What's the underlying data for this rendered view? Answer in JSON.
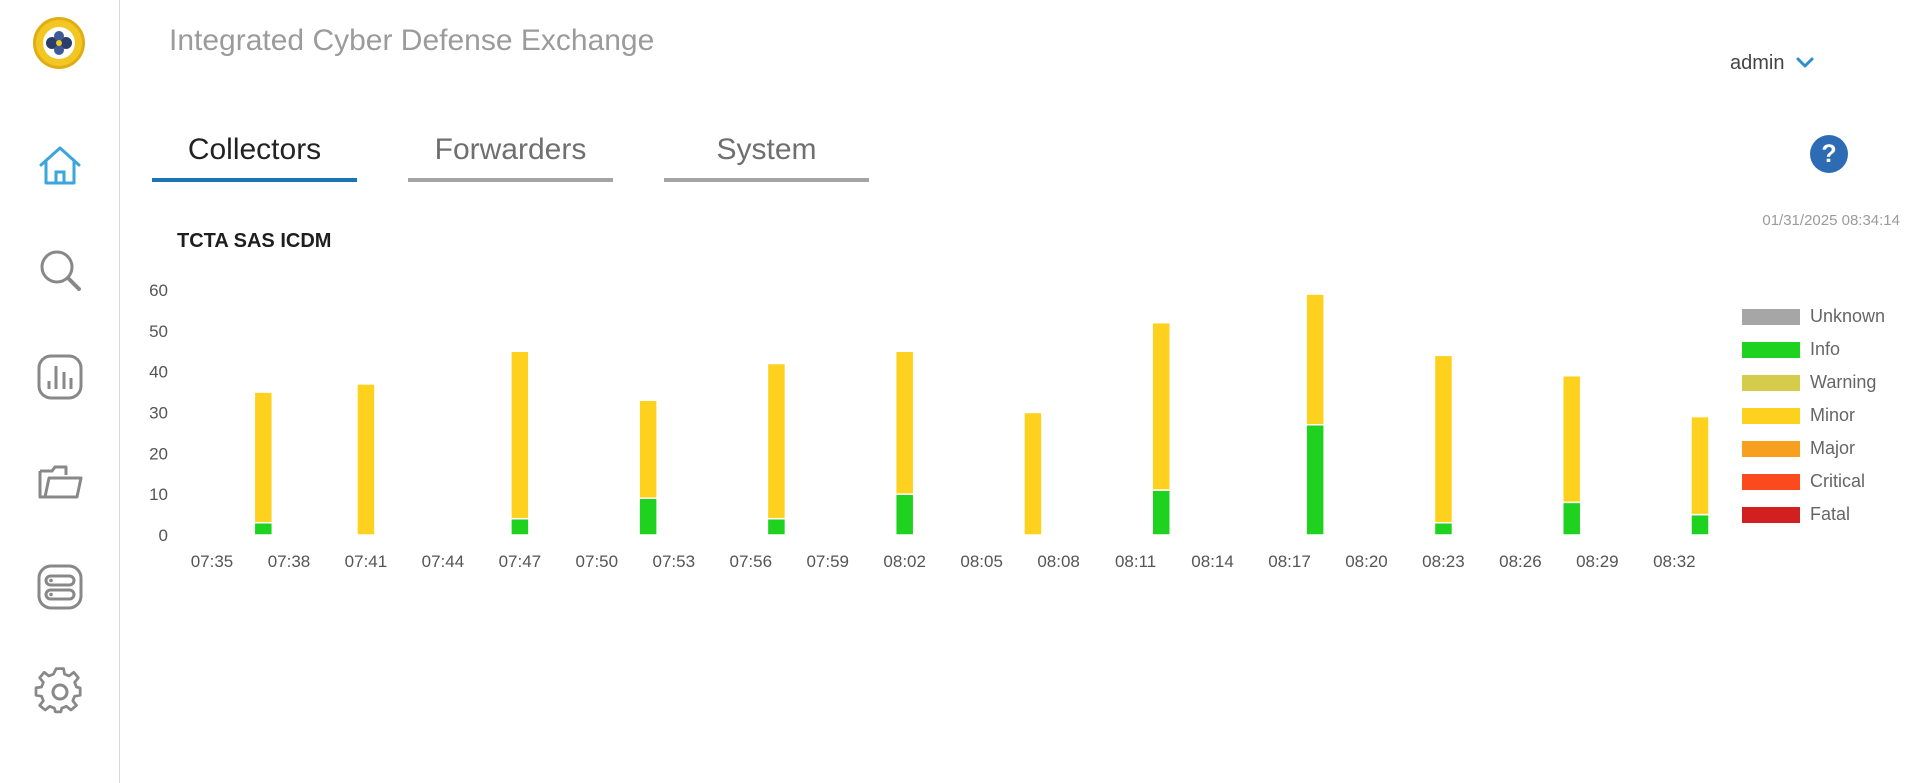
{
  "app": {
    "title": "Integrated Cyber Defense Exchange"
  },
  "user": {
    "name": "admin"
  },
  "sidebar": {
    "items": [
      {
        "name": "home",
        "icon": "home-icon",
        "active": true
      },
      {
        "name": "search",
        "icon": "search-icon",
        "active": false
      },
      {
        "name": "reports",
        "icon": "chart-icon",
        "active": false
      },
      {
        "name": "files",
        "icon": "folder-icon",
        "active": false
      },
      {
        "name": "servers",
        "icon": "server-icon",
        "active": false
      },
      {
        "name": "settings",
        "icon": "gear-icon",
        "active": false
      }
    ]
  },
  "tabs": [
    {
      "label": "Collectors",
      "active": true
    },
    {
      "label": "Forwarders",
      "active": false
    },
    {
      "label": "System",
      "active": false
    }
  ],
  "help": {
    "label": "?"
  },
  "timestamp": "01/31/2025 08:34:14",
  "colors": {
    "accent": "#1a74b8",
    "help": "#2d6cb5",
    "logo": "#f3c623"
  },
  "legend": [
    {
      "label": "Unknown",
      "color": "#a6a6a6"
    },
    {
      "label": "Info",
      "color": "#1fd21f"
    },
    {
      "label": "Warning",
      "color": "#d4cc4a"
    },
    {
      "label": "Minor",
      "color": "#ffd11f"
    },
    {
      "label": "Major",
      "color": "#f7a01f"
    },
    {
      "label": "Critical",
      "color": "#fc4a1f"
    },
    {
      "label": "Fatal",
      "color": "#d21f1f"
    }
  ],
  "chart_data": {
    "type": "bar",
    "stacked": true,
    "title": "TCTA SAS ICDM",
    "xlabel": "",
    "ylabel": "",
    "ylim": [
      0,
      60
    ],
    "yticks": [
      0,
      10,
      20,
      30,
      40,
      50,
      60
    ],
    "xticks": [
      "07:35",
      "07:38",
      "07:41",
      "07:44",
      "07:47",
      "07:50",
      "07:53",
      "07:56",
      "07:59",
      "08:02",
      "08:05",
      "08:08",
      "08:11",
      "08:14",
      "08:17",
      "08:20",
      "08:23",
      "08:26",
      "08:29",
      "08:32"
    ],
    "x_range": [
      "07:35",
      "08:33"
    ],
    "x": [
      "07:37",
      "07:41",
      "07:47",
      "07:52",
      "07:57",
      "08:02",
      "08:07",
      "08:12",
      "08:18",
      "08:23",
      "08:28",
      "08:33"
    ],
    "legend_position": "right",
    "grid": false,
    "series": [
      {
        "name": "Info",
        "color": "#1fd21f",
        "values": [
          3,
          0,
          4,
          9,
          4,
          10,
          0,
          11,
          27,
          3,
          8,
          5
        ]
      },
      {
        "name": "Minor",
        "color": "#ffd11f",
        "values": [
          32,
          37,
          41,
          24,
          38,
          35,
          30,
          41,
          32,
          41,
          31,
          24
        ]
      }
    ]
  }
}
